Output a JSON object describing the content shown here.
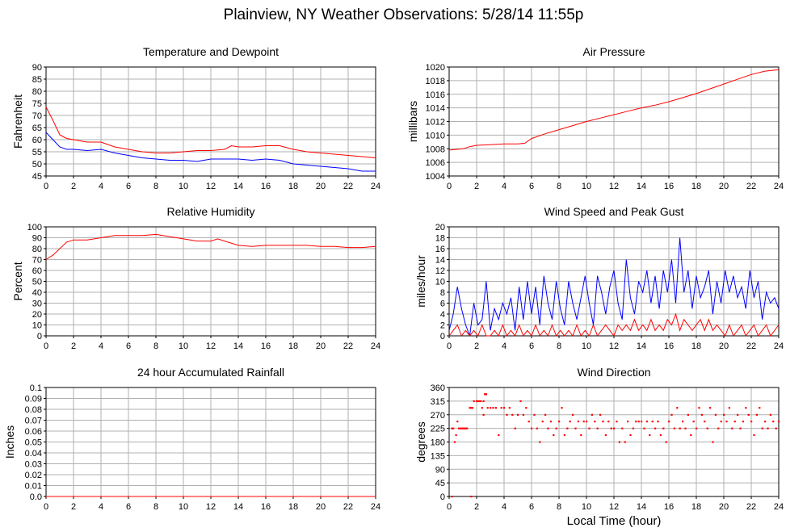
{
  "title": "Plainview, NY Weather Observations: 5/28/14 11:55p",
  "footer_xlabel": "Local Time (hour)",
  "colors": {
    "red": "#ff0000",
    "blue": "#0000ff",
    "grid": "#b0b0b0",
    "frame": "#000000"
  },
  "chart_data": [
    {
      "id": "temp",
      "type": "line",
      "title": "Temperature and Dewpoint",
      "xlabel": "",
      "ylabel": "Fahrenheit",
      "xlim": [
        0,
        24
      ],
      "ylim": [
        45,
        90
      ],
      "xticks": [
        0,
        2,
        4,
        6,
        8,
        10,
        12,
        14,
        16,
        18,
        20,
        22,
        24
      ],
      "yticks": [
        45,
        50,
        55,
        60,
        65,
        70,
        75,
        80,
        85,
        90
      ],
      "grid": true,
      "series": [
        {
          "color": "red",
          "x": [
            0,
            0.5,
            1,
            1.5,
            2,
            3,
            4,
            5,
            6,
            7,
            8,
            9,
            10,
            11,
            12,
            13,
            13.5,
            14,
            15,
            16,
            17,
            18,
            19,
            20,
            21,
            22,
            23,
            24
          ],
          "y": [
            73.5,
            68,
            62,
            60.5,
            60,
            59,
            59,
            57,
            56,
            55,
            54.5,
            54.5,
            55,
            55.5,
            55.5,
            56,
            57.5,
            57,
            57,
            57.5,
            57.5,
            56,
            55,
            54.5,
            54,
            53.5,
            53,
            52.5
          ]
        },
        {
          "color": "blue",
          "x": [
            0,
            0.5,
            1,
            1.5,
            2,
            3,
            4,
            5,
            6,
            7,
            8,
            9,
            10,
            11,
            12,
            13,
            14,
            15,
            16,
            17,
            18,
            19,
            20,
            21,
            22,
            23,
            24
          ],
          "y": [
            63,
            60,
            57,
            56,
            56,
            55.5,
            56,
            54.5,
            53.5,
            52.5,
            52,
            51.5,
            51.5,
            51,
            52,
            52,
            52,
            51.5,
            52,
            51.5,
            50,
            49.5,
            49,
            48.5,
            48,
            47,
            47
          ]
        }
      ]
    },
    {
      "id": "pressure",
      "type": "line",
      "title": "Air Pressure",
      "xlabel": "",
      "ylabel": "millibars",
      "xlim": [
        0,
        24
      ],
      "ylim": [
        1004,
        1020
      ],
      "xticks": [
        0,
        2,
        4,
        6,
        8,
        10,
        12,
        14,
        16,
        18,
        20,
        22,
        24
      ],
      "yticks": [
        1004,
        1006,
        1008,
        1010,
        1012,
        1014,
        1016,
        1018,
        1020
      ],
      "grid": true,
      "series": [
        {
          "color": "red",
          "x": [
            0,
            1,
            1.5,
            2,
            3,
            4,
            5,
            5.5,
            6,
            7,
            8,
            9,
            10,
            11,
            12,
            13,
            14,
            15,
            16,
            17,
            18,
            19,
            20,
            21,
            22,
            23,
            24
          ],
          "y": [
            1007.8,
            1008,
            1008.3,
            1008.5,
            1008.6,
            1008.7,
            1008.7,
            1008.8,
            1009.5,
            1010.2,
            1010.8,
            1011.4,
            1012,
            1012.5,
            1013,
            1013.5,
            1014,
            1014.4,
            1014.9,
            1015.5,
            1016.1,
            1016.8,
            1017.5,
            1018.2,
            1018.9,
            1019.4,
            1019.6
          ]
        }
      ]
    },
    {
      "id": "humidity",
      "type": "line",
      "title": "Relative Humidity",
      "xlabel": "",
      "ylabel": "Percent",
      "xlim": [
        0,
        24
      ],
      "ylim": [
        0,
        100
      ],
      "xticks": [
        0,
        2,
        4,
        6,
        8,
        10,
        12,
        14,
        16,
        18,
        20,
        22,
        24
      ],
      "yticks": [
        0,
        10,
        20,
        30,
        40,
        50,
        60,
        70,
        80,
        90,
        100
      ],
      "grid": true,
      "series": [
        {
          "color": "red",
          "x": [
            0,
            0.5,
            1,
            1.5,
            2,
            3,
            4,
            5,
            6,
            7,
            8,
            9,
            10,
            11,
            12,
            12.5,
            13,
            14,
            15,
            16,
            17,
            18,
            19,
            20,
            21,
            22,
            23,
            24
          ],
          "y": [
            70,
            74,
            80,
            86,
            88,
            88,
            90,
            92,
            92,
            92,
            93,
            91,
            89,
            87,
            87,
            89,
            87,
            83,
            82,
            83,
            83,
            83,
            83,
            82,
            82,
            81,
            81,
            82
          ]
        }
      ]
    },
    {
      "id": "wind",
      "type": "line",
      "title": "Wind Speed and Peak Gust",
      "xlabel": "",
      "ylabel": "miles/hour",
      "xlim": [
        0,
        24
      ],
      "ylim": [
        0,
        20
      ],
      "xticks": [
        0,
        2,
        4,
        6,
        8,
        10,
        12,
        14,
        16,
        18,
        20,
        22,
        24
      ],
      "yticks": [
        0,
        2,
        4,
        6,
        8,
        10,
        12,
        14,
        16,
        18,
        20
      ],
      "grid": true,
      "series": [
        {
          "color": "blue",
          "x": [
            0,
            0.3,
            0.6,
            0.9,
            1.2,
            1.5,
            1.8,
            2.1,
            2.4,
            2.7,
            3,
            3.3,
            3.6,
            3.9,
            4.2,
            4.5,
            4.8,
            5.1,
            5.4,
            5.7,
            6,
            6.3,
            6.6,
            6.9,
            7.2,
            7.5,
            7.8,
            8.1,
            8.4,
            8.7,
            9,
            9.3,
            9.6,
            9.9,
            10.2,
            10.5,
            10.8,
            11.1,
            11.4,
            11.7,
            12,
            12.3,
            12.6,
            12.9,
            13.2,
            13.5,
            13.8,
            14.1,
            14.4,
            14.7,
            15,
            15.3,
            15.6,
            15.9,
            16.2,
            16.5,
            16.8,
            17.1,
            17.4,
            17.7,
            18,
            18.3,
            18.6,
            18.9,
            19.2,
            19.5,
            19.8,
            20.1,
            20.4,
            20.7,
            21,
            21.3,
            21.6,
            21.9,
            22.2,
            22.5,
            22.8,
            23.1,
            23.4,
            23.7,
            24
          ],
          "y": [
            1,
            4,
            9,
            5,
            2,
            0,
            6,
            2,
            3,
            10,
            1,
            5,
            3,
            6,
            4,
            7,
            1,
            9,
            3,
            10,
            4,
            9,
            2,
            11,
            6,
            3,
            10,
            5,
            2,
            10,
            6,
            3,
            7,
            11,
            6,
            2,
            11,
            8,
            4,
            9,
            12,
            6,
            3,
            14,
            7,
            4,
            10,
            8,
            12,
            6,
            11,
            5,
            12,
            8,
            14,
            6,
            18,
            8,
            12,
            5,
            11,
            7,
            9,
            12,
            4,
            10,
            6,
            12,
            8,
            11,
            7,
            9,
            5,
            12,
            7,
            10,
            3,
            8,
            6,
            7,
            5
          ]
        },
        {
          "color": "red",
          "x": [
            0,
            0.3,
            0.6,
            0.9,
            1.2,
            1.5,
            1.8,
            2.1,
            2.4,
            2.7,
            3,
            3.3,
            3.6,
            3.9,
            4.2,
            4.5,
            4.8,
            5.1,
            5.4,
            5.7,
            6,
            6.3,
            6.6,
            6.9,
            7.2,
            7.5,
            7.8,
            8.1,
            8.4,
            8.7,
            9,
            9.3,
            9.6,
            9.9,
            10.2,
            10.5,
            10.8,
            11.1,
            11.4,
            11.7,
            12,
            12.3,
            12.6,
            12.9,
            13.2,
            13.5,
            13.8,
            14.1,
            14.4,
            14.7,
            15,
            15.3,
            15.6,
            15.9,
            16.2,
            16.5,
            16.8,
            17.1,
            17.4,
            17.7,
            18,
            18.3,
            18.6,
            18.9,
            19.2,
            19.5,
            19.8,
            20.1,
            20.4,
            20.7,
            21,
            21.3,
            21.6,
            21.9,
            22.2,
            22.5,
            22.8,
            23.1,
            23.4,
            23.7,
            24
          ],
          "y": [
            0,
            1,
            2,
            0,
            1,
            0,
            1,
            0,
            2,
            0,
            0,
            1,
            0,
            2,
            0,
            1,
            0,
            2,
            0,
            1,
            0,
            2,
            0,
            1,
            0,
            2,
            0,
            1,
            0,
            1,
            0,
            2,
            0,
            1,
            0,
            2,
            0,
            1,
            2,
            1,
            0,
            2,
            1,
            2,
            1,
            3,
            1,
            2,
            1,
            3,
            1,
            2,
            1,
            3,
            2,
            4,
            1,
            3,
            2,
            1,
            2,
            3,
            1,
            3,
            1,
            2,
            1,
            0,
            2,
            0,
            1,
            2,
            0,
            1,
            2,
            0,
            1,
            2,
            0,
            1,
            2
          ]
        }
      ]
    },
    {
      "id": "rain",
      "type": "line",
      "title": "24 hour Accumulated Rainfall",
      "xlabel": "",
      "ylabel": "Inches",
      "xlim": [
        0,
        24
      ],
      "ylim": [
        0,
        0.1
      ],
      "xticks": [
        0,
        2,
        4,
        6,
        8,
        10,
        12,
        14,
        16,
        18,
        20,
        22,
        24
      ],
      "yticks": [
        0,
        0.01,
        0.02,
        0.03,
        0.04,
        0.05,
        0.06,
        0.07,
        0.08,
        0.09,
        0.1
      ],
      "yticklabels": [
        "0.0",
        "0.01",
        "0.02",
        "0.03",
        "0.04",
        "0.05",
        "0.06",
        "0.07",
        "0.08",
        "0.09",
        "0.1"
      ],
      "grid": true,
      "series": [
        {
          "color": "red",
          "x": [
            0,
            24
          ],
          "y": [
            0,
            0
          ]
        }
      ]
    },
    {
      "id": "direction",
      "type": "scatter",
      "title": "Wind Direction",
      "xlabel": "Local Time (hour)",
      "ylabel": "degrees",
      "xlim": [
        0,
        24
      ],
      "ylim": [
        0,
        360
      ],
      "xticks": [
        0,
        2,
        4,
        6,
        8,
        10,
        12,
        14,
        16,
        18,
        20,
        22,
        24
      ],
      "yticks": [
        0,
        45,
        90,
        135,
        180,
        225,
        270,
        315,
        360
      ],
      "grid": true,
      "series": [
        {
          "color": "red",
          "x": [
            0.2,
            0.3,
            0.4,
            0.5,
            0.6,
            0.7,
            0.8,
            0.9,
            1.0,
            1.1,
            1.2,
            1.3,
            1.5,
            1.6,
            1.7,
            1.8,
            2.0,
            2.1,
            2.2,
            2.3,
            2.4,
            2.5,
            2.6,
            2.7,
            2.8,
            3.0,
            3.2,
            3.4,
            3.6,
            3.8,
            4.0,
            4.2,
            4.4,
            4.6,
            4.8,
            5.0,
            5.2,
            5.4,
            5.6,
            5.8,
            6.0,
            6.2,
            6.4,
            6.6,
            6.8,
            7.0,
            7.2,
            7.4,
            7.6,
            7.8,
            8.0,
            8.2,
            8.4,
            8.6,
            8.8,
            9.0,
            9.2,
            9.4,
            9.6,
            9.8,
            10.0,
            10.2,
            10.4,
            10.6,
            10.8,
            11.0,
            11.2,
            11.4,
            11.6,
            11.8,
            12.0,
            12.2,
            12.4,
            12.6,
            12.8,
            13.0,
            13.2,
            13.4,
            13.6,
            13.8,
            14.0,
            14.2,
            14.4,
            14.6,
            14.8,
            15.0,
            15.2,
            15.4,
            15.6,
            15.8,
            16.0,
            16.2,
            16.4,
            16.6,
            16.8,
            17.0,
            17.2,
            17.4,
            17.6,
            17.8,
            18.0,
            18.2,
            18.4,
            18.6,
            18.8,
            19.0,
            19.2,
            19.4,
            19.6,
            19.8,
            20.0,
            20.2,
            20.4,
            20.6,
            20.8,
            21.0,
            21.2,
            21.4,
            21.6,
            21.8,
            22.0,
            22.2,
            22.4,
            22.6,
            22.8,
            23.0,
            23.2,
            23.4,
            23.6,
            23.8,
            24.0,
            0.2,
            1.6,
            2.5,
            2.6
          ],
          "y": [
            225,
            225,
            180,
            203,
            248,
            225,
            225,
            225,
            225,
            225,
            225,
            225,
            293,
            293,
            293,
            315,
            315,
            315,
            315,
            315,
            293,
            270,
            338,
            338,
            293,
            293,
            293,
            293,
            203,
            293,
            293,
            270,
            293,
            270,
            225,
            270,
            315,
            270,
            293,
            248,
            225,
            270,
            225,
            180,
            248,
            270,
            225,
            248,
            203,
            225,
            248,
            293,
            203,
            225,
            248,
            270,
            225,
            248,
            203,
            248,
            248,
            225,
            270,
            248,
            225,
            270,
            248,
            203,
            248,
            225,
            225,
            248,
            180,
            225,
            180,
            248,
            203,
            225,
            248,
            248,
            248,
            225,
            248,
            203,
            248,
            225,
            248,
            203,
            225,
            180,
            248,
            270,
            225,
            293,
            225,
            248,
            225,
            270,
            203,
            248,
            225,
            293,
            270,
            248,
            225,
            293,
            180,
            270,
            225,
            248,
            270,
            248,
            293,
            225,
            248,
            270,
            225,
            248,
            293,
            270,
            248,
            203,
            270,
            293,
            225,
            248,
            225,
            270,
            248,
            225,
            248,
            0,
            0,
            315,
            338
          ]
        }
      ]
    }
  ]
}
